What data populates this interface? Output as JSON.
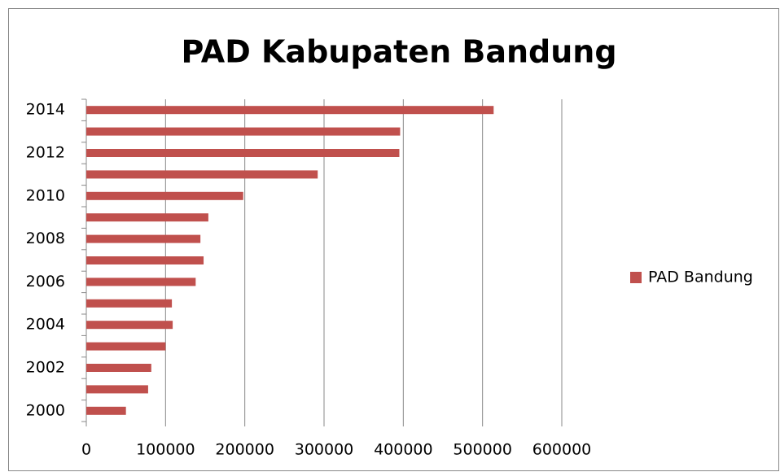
{
  "chart_data": {
    "type": "bar",
    "orientation": "horizontal",
    "title": "PAD Kabupaten Bandung",
    "categories": [
      "2000",
      null,
      "2002",
      null,
      "2004",
      null,
      "2006",
      null,
      "2008",
      null,
      "2010",
      null,
      "2012",
      null,
      "2014"
    ],
    "series": [
      {
        "name": "PAD Bandung",
        "color": "#c0504d",
        "values": [
          50000,
          78000,
          82000,
          100000,
          109000,
          108000,
          138000,
          148000,
          144000,
          154000,
          198000,
          292000,
          395000,
          396000,
          514000
        ]
      }
    ],
    "xlim": [
      0,
      600000
    ],
    "xticks": [
      0,
      100000,
      200000,
      300000,
      400000,
      500000,
      600000
    ],
    "grid": true,
    "legend": "right"
  }
}
